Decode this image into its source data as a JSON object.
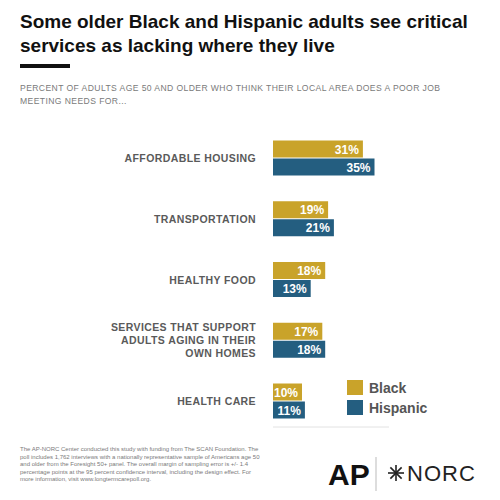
{
  "chart_data": {
    "type": "bar",
    "orientation": "horizontal",
    "title": "Some older Black and Hispanic adults see critical services as lacking where they live",
    "subtitle": "PERCENT OF ADULTS AGE 50 AND OLDER WHO THINK THEIR LOCAL AREA DOES A POOR JOB MEETING NEEDS FOR...",
    "categories": [
      "AFFORDABLE HOUSING",
      "TRANSPORTATION",
      "HEALTHY FOOD",
      "SERVICES THAT SUPPORT ADULTS AGING IN THEIR OWN HOMES",
      "HEALTH CARE"
    ],
    "series": [
      {
        "name": "Black",
        "color": "#c9a32a",
        "values": [
          31,
          19,
          18,
          17,
          10
        ],
        "value_labels": [
          "31%",
          "19%",
          "18%",
          "17%",
          "10%"
        ]
      },
      {
        "name": "Hispanic",
        "color": "#245e80",
        "values": [
          35,
          21,
          13,
          18,
          11
        ],
        "value_labels": [
          "35%",
          "21%",
          "13%",
          "18%",
          "11%"
        ]
      }
    ],
    "xlim": [
      0,
      40
    ],
    "data_labels": true,
    "tick_labels": "y",
    "grid": false,
    "legend": "bottom-right",
    "footnote": "The AP-NORC Center conducted this study with funding from The SCAN Foundation. The poll includes 1,762 interviews with a nationally representative sample of Americans age 50 and older from the Foresight 50+ panel. The overall margin of sampling error is +/- 1.4 percentage points at the 95 percent confidence interval, including the design effect. For more information, visit www.longtermcarepoll.org.",
    "logos": [
      "AP",
      "NORC"
    ]
  }
}
